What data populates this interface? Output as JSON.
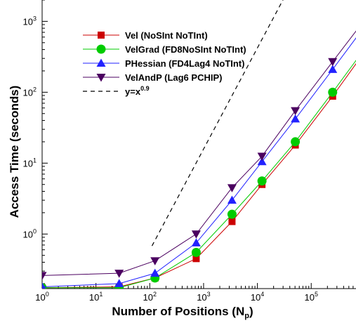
{
  "chart_data": {
    "type": "line",
    "xscale": "log",
    "yscale": "log",
    "xlim": [
      1,
      700000
    ],
    "ylim": [
      0.17,
      2000
    ],
    "grid": false,
    "legend_position": "top-left",
    "xlabel": "Number of Positions (N",
    "xlabel_sub": "p",
    "xlabel_end": ")",
    "ylabel": "Access Time (seconds)",
    "x_ticks": [
      {
        "base": "10",
        "exp": "0",
        "value": 1
      },
      {
        "base": "10",
        "exp": "1",
        "value": 10
      },
      {
        "base": "10",
        "exp": "2",
        "value": 100
      },
      {
        "base": "10",
        "exp": "3",
        "value": 1000
      },
      {
        "base": "10",
        "exp": "4",
        "value": 10000
      },
      {
        "base": "10",
        "exp": "5",
        "value": 100000
      }
    ],
    "y_ticks": [
      {
        "base": "10",
        "exp": "0",
        "value": 1
      },
      {
        "base": "10",
        "exp": "1",
        "value": 10
      },
      {
        "base": "10",
        "exp": "2",
        "value": 100
      },
      {
        "base": "10",
        "exp": "3",
        "value": 1000
      }
    ],
    "series": [
      {
        "name": "Vel (NoSInt NoTInt)",
        "color": "#cc0000",
        "marker": "square",
        "x": [
          1,
          27,
          125,
          729,
          3375,
          12167,
          50653,
          250047,
          700000
        ],
        "y": [
          0.175,
          0.18,
          0.24,
          0.45,
          1.5,
          5.0,
          18,
          88,
          260
        ]
      },
      {
        "name": "VelGrad (FD8NoSInt NoTInt)",
        "color": "#00cc00",
        "marker": "circle",
        "x": [
          1,
          27,
          125,
          729,
          3375,
          12167,
          50653,
          250047,
          700000
        ],
        "y": [
          0.175,
          0.175,
          0.24,
          0.55,
          1.9,
          5.6,
          20,
          100,
          290
        ]
      },
      {
        "name": "PHessian (FD4Lag4 NoTInt)",
        "color": "#2222ff",
        "marker": "triangle-up",
        "x": [
          1,
          27,
          125,
          729,
          3375,
          12167,
          50653,
          250047,
          700000
        ],
        "y": [
          0.18,
          0.2,
          0.28,
          0.75,
          3.0,
          10.5,
          42,
          210,
          600
        ]
      },
      {
        "name": "VelAndP (Lag6 PCHIP)",
        "color": "#4b0060",
        "marker": "triangle-down",
        "x": [
          1,
          27,
          125,
          729,
          3375,
          12167,
          50653,
          250047,
          700000
        ],
        "y": [
          0.26,
          0.28,
          0.42,
          1.0,
          4.5,
          12.5,
          55,
          270,
          750
        ]
      },
      {
        "name": "y=x",
        "name_sup": "0.9",
        "color": "#000000",
        "style": "dashed",
        "x": [
          110,
          700000
        ],
        "y": [
          0.68,
          180000
        ]
      }
    ]
  }
}
